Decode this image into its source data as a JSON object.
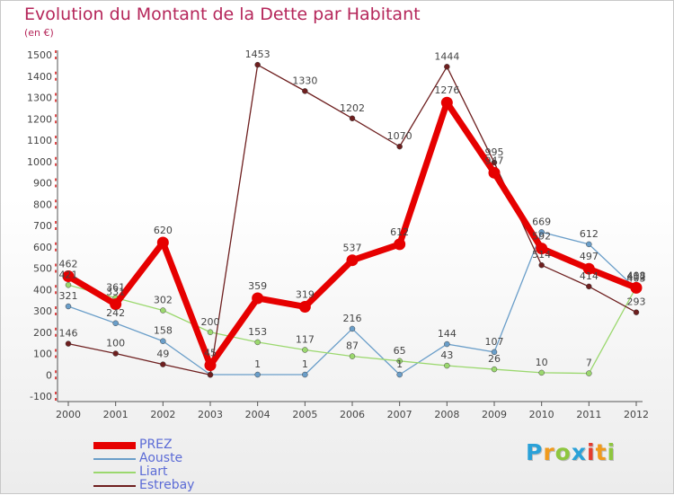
{
  "title": "Evolution du Montant de la Dette par Habitant",
  "subtitle": "(en €)",
  "logo_text": "Proxiti",
  "chart_data": {
    "type": "line",
    "title": "Evolution du Montant de la Dette par Habitant",
    "subtitle": "(en €)",
    "x": [
      "2000",
      "2001",
      "2002",
      "2003",
      "2004",
      "2005",
      "2006",
      "2007",
      "2008",
      "2009",
      "2010",
      "2011",
      "2012"
    ],
    "y_ticks": [
      "-100",
      "0",
      "100",
      "200",
      "300",
      "400",
      "500",
      "600",
      "700",
      "800",
      "900",
      "1000",
      "1100",
      "1200",
      "1300",
      "1400",
      "1500"
    ],
    "ylim": [
      -100,
      1500
    ],
    "grid": false,
    "legend_position": "bottom-left",
    "series": [
      {
        "name": "PREZ",
        "color": "#e60000",
        "values": [
          462,
          331,
          620,
          45,
          359,
          319,
          537,
          612,
          1276,
          947,
          592,
          497,
          408
        ]
      },
      {
        "name": "Aouste",
        "color": "#6a9ec9",
        "values": [
          321,
          242,
          158,
          1,
          1,
          1,
          216,
          1,
          144,
          107,
          669,
          612,
          403
        ]
      },
      {
        "name": "Liart",
        "color": "#9bd86e",
        "values": [
          421,
          361,
          302,
          200,
          153,
          117,
          87,
          65,
          43,
          26,
          10,
          7,
          412
        ]
      },
      {
        "name": "Estrebay",
        "color": "#6e1f1f",
        "values": [
          146,
          100,
          49,
          0,
          1453,
          1330,
          1202,
          1070,
          1444,
          995,
          514,
          414,
          293
        ]
      }
    ],
    "data_labels": [
      {
        "series": "PREZ",
        "labels": [
          "462",
          "331",
          "620",
          "45",
          "359",
          "319",
          "537",
          "612",
          "1276",
          "947",
          "592",
          "497",
          "408"
        ]
      },
      {
        "series": "Aouste",
        "labels": [
          "321",
          "242",
          "158",
          "",
          "1",
          "1",
          "216",
          "1",
          "144",
          "107",
          "669",
          "612",
          "403"
        ]
      },
      {
        "series": "Liart",
        "labels": [
          "421",
          "361",
          "302",
          "200",
          "153",
          "117",
          "87",
          "65",
          "43",
          "26",
          "10",
          "7",
          "412"
        ]
      },
      {
        "series": "Estrebay",
        "labels": [
          "146",
          "100",
          "49",
          "",
          "1453",
          "1330",
          "1202",
          "1070",
          "1444",
          "995",
          "514",
          "414",
          "293"
        ]
      }
    ]
  }
}
